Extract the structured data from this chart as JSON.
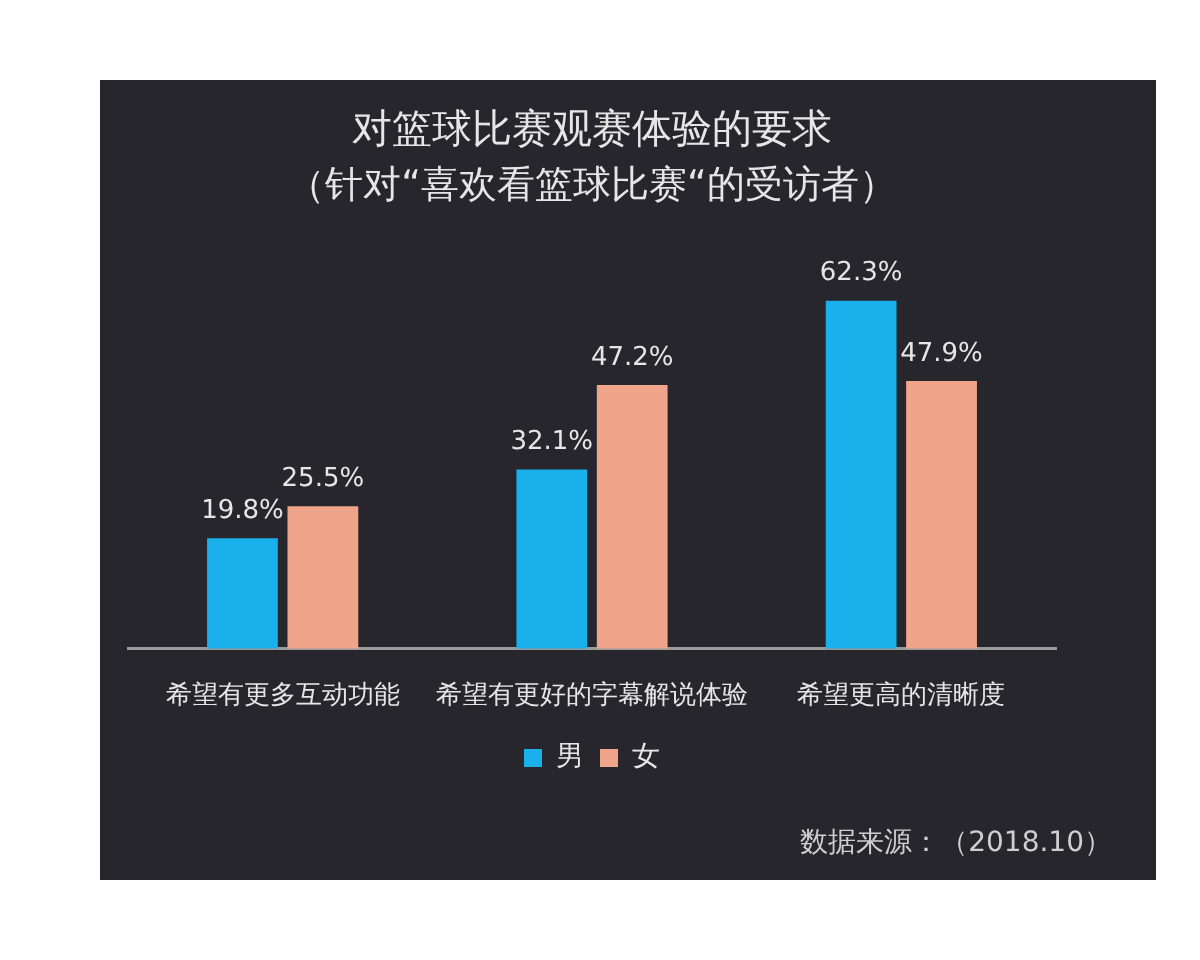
{
  "chart_data": {
    "type": "bar",
    "title": "对篮球比赛观赛体验的要求",
    "subtitle": "（针对“喜欢看篮球比赛“的受访者）",
    "categories": [
      "希望有更多互动功能",
      "希望有更好的字幕解说体验",
      "希望更高的清晰度"
    ],
    "series": [
      {
        "name": "男",
        "color": "#1ab0ec",
        "values": [
          19.8,
          32.1,
          62.3
        ],
        "value_labels": [
          "19.8%",
          "32.1%",
          "62.3%"
        ]
      },
      {
        "name": "女",
        "color": "#f0a48a",
        "values": [
          25.5,
          47.2,
          47.9
        ],
        "value_labels": [
          "25.5%",
          "47.2%",
          "47.9%"
        ]
      }
    ],
    "legend": "bottom",
    "annotations": [
      "数据来源：（2018.10）"
    ]
  }
}
